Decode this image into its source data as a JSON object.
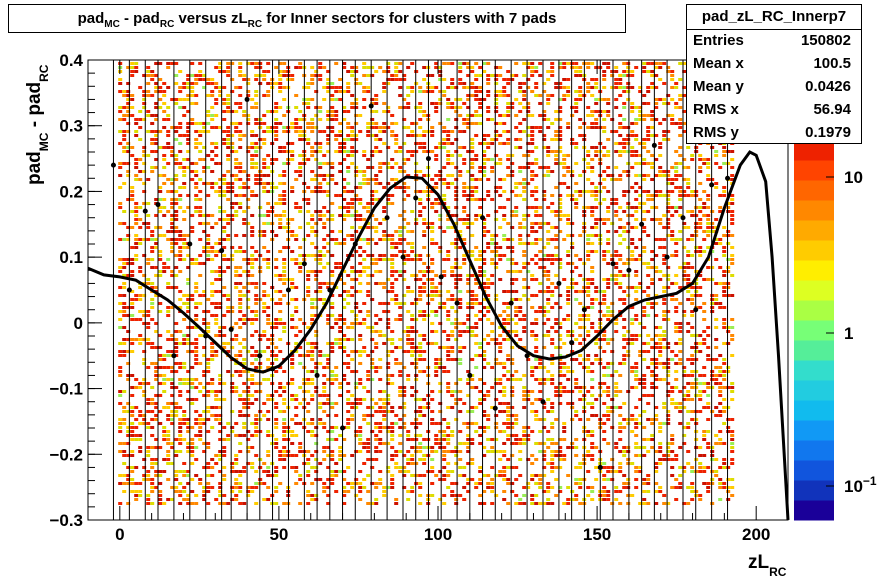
{
  "chart_data": {
    "type": "heatmap",
    "title": {
      "prefix": "pad",
      "sub1": "MC",
      "mid": " - pad",
      "sub2": "RC",
      "mid2": " versus zL",
      "sub3": "RC",
      "suffix": " for Inner sectors for clusters with 7 pads"
    },
    "xlabel": {
      "main": "zL",
      "sub": "RC"
    },
    "ylabel": {
      "main": "pad",
      "sub1": "MC",
      "mid": " - pad",
      "sub2": "RC"
    },
    "xlim": [
      -10,
      210
    ],
    "ylim": [
      -0.3,
      0.4
    ],
    "x_ticks": [
      0,
      50,
      100,
      150,
      200
    ],
    "x_tick_labels": [
      "0",
      "50",
      "100",
      "150",
      "200"
    ],
    "y_ticks": [
      -0.3,
      -0.2,
      -0.1,
      0,
      0.1,
      0.2,
      0.3,
      0.4
    ],
    "y_tick_labels": [
      "−0.3",
      "−0.2",
      "−0.1",
      "0",
      "0.1",
      "0.2",
      "0.3",
      "0.4"
    ],
    "z_scale": "log",
    "z_ticks": [
      {
        "label": "10",
        "exp": "",
        "value": 10
      },
      {
        "label": "1",
        "exp": "",
        "value": 1
      },
      {
        "label": "10",
        "exp": "−1",
        "value": 0.1
      }
    ],
    "fit_curve": {
      "x": [
        -10,
        -5,
        0,
        5,
        10,
        15,
        20,
        25,
        30,
        35,
        40,
        45,
        50,
        55,
        60,
        65,
        70,
        75,
        80,
        85,
        90,
        95,
        100,
        105,
        110,
        115,
        120,
        125,
        130,
        135,
        140,
        145,
        150,
        155,
        160,
        165,
        170,
        175,
        180,
        185,
        190,
        195,
        198,
        200,
        203,
        205,
        207,
        210
      ],
      "y": [
        0.083,
        0.073,
        0.07,
        0.065,
        0.05,
        0.035,
        0.015,
        -0.007,
        -0.03,
        -0.053,
        -0.07,
        -0.075,
        -0.066,
        -0.042,
        -0.01,
        0.03,
        0.08,
        0.13,
        0.175,
        0.205,
        0.222,
        0.22,
        0.195,
        0.15,
        0.095,
        0.04,
        -0.005,
        -0.035,
        -0.05,
        -0.055,
        -0.052,
        -0.042,
        -0.02,
        0.005,
        0.025,
        0.035,
        0.04,
        0.045,
        0.06,
        0.1,
        0.175,
        0.24,
        0.26,
        0.255,
        0.215,
        0.1,
        -0.05,
        -0.3
      ]
    },
    "profile_points": [
      {
        "x": -2,
        "y": 0.24,
        "e": 0.12
      },
      {
        "x": 3,
        "y": 0.05,
        "e": 0.08
      },
      {
        "x": 8,
        "y": 0.17,
        "e": 0.15
      },
      {
        "x": 12,
        "y": 0.18,
        "e": 0.1
      },
      {
        "x": 17,
        "y": -0.05,
        "e": 0.14
      },
      {
        "x": 22,
        "y": 0.12,
        "e": 0.09
      },
      {
        "x": 27,
        "y": -0.02,
        "e": 0.1
      },
      {
        "x": 32,
        "y": 0.11,
        "e": 0.12
      },
      {
        "x": 35,
        "y": -0.01,
        "e": 0.13
      },
      {
        "x": 40,
        "y": 0.34,
        "e": 0.06
      },
      {
        "x": 44,
        "y": -0.05,
        "e": 0.11
      },
      {
        "x": 48,
        "y": -0.07,
        "e": 0.1
      },
      {
        "x": 53,
        "y": 0.05,
        "e": 0.12
      },
      {
        "x": 58,
        "y": 0.09,
        "e": 0.1
      },
      {
        "x": 62,
        "y": -0.08,
        "e": 0.13
      },
      {
        "x": 66,
        "y": 0.05,
        "e": 0.11
      },
      {
        "x": 70,
        "y": -0.16,
        "e": 0.12
      },
      {
        "x": 74,
        "y": 0.12,
        "e": 0.1
      },
      {
        "x": 79,
        "y": 0.33,
        "e": 0.09
      },
      {
        "x": 84,
        "y": 0.16,
        "e": 0.14
      },
      {
        "x": 89,
        "y": 0.1,
        "e": 0.12
      },
      {
        "x": 93,
        "y": 0.19,
        "e": 0.1
      },
      {
        "x": 97,
        "y": 0.25,
        "e": 0.13
      },
      {
        "x": 101,
        "y": 0.07,
        "e": 0.12
      },
      {
        "x": 106,
        "y": 0.03,
        "e": 0.1
      },
      {
        "x": 110,
        "y": -0.08,
        "e": 0.13
      },
      {
        "x": 114,
        "y": 0.16,
        "e": 0.1
      },
      {
        "x": 118,
        "y": -0.13,
        "e": 0.12
      },
      {
        "x": 123,
        "y": 0.03,
        "e": 0.11
      },
      {
        "x": 128,
        "y": -0.05,
        "e": 0.12
      },
      {
        "x": 133,
        "y": -0.12,
        "e": 0.1
      },
      {
        "x": 138,
        "y": 0.06,
        "e": 0.13
      },
      {
        "x": 142,
        "y": -0.03,
        "e": 0.1
      },
      {
        "x": 146,
        "y": 0.02,
        "e": 0.12
      },
      {
        "x": 151,
        "y": -0.22,
        "e": 0.11
      },
      {
        "x": 155,
        "y": 0.09,
        "e": 0.12
      },
      {
        "x": 160,
        "y": 0.08,
        "e": 0.1
      },
      {
        "x": 164,
        "y": 0.15,
        "e": 0.13
      },
      {
        "x": 168,
        "y": 0.27,
        "e": 0.1
      },
      {
        "x": 172,
        "y": 0.1,
        "e": 0.12
      },
      {
        "x": 177,
        "y": 0.16,
        "e": 0.12
      },
      {
        "x": 181,
        "y": 0.02,
        "e": 0.1
      },
      {
        "x": 186,
        "y": 0.21,
        "e": 0.13
      },
      {
        "x": 191,
        "y": 0.22,
        "e": 0.11
      }
    ],
    "bin_colors": [
      "#ffffff",
      "#ffcc00",
      "#ff8800",
      "#ee2200",
      "#cc1100",
      "#dddd00",
      "#99ee55"
    ]
  },
  "stats": {
    "name": "pad_zL_RC_Innerp7",
    "rows": [
      {
        "label": "Entries",
        "value": "150802"
      },
      {
        "label": "Mean x",
        "value": "100.5"
      },
      {
        "label": "Mean y",
        "value": "0.0426"
      },
      {
        "label": "RMS x",
        "value": "56.94"
      },
      {
        "label": "RMS y",
        "value": "0.1979"
      }
    ]
  },
  "palette_colors": [
    "#1a0099",
    "#1133bb",
    "#1155dd",
    "#1177ee",
    "#1199f5",
    "#11bbee",
    "#22cce0",
    "#33ddcc",
    "#55ee99",
    "#77ff77",
    "#aaff44",
    "#ddff22",
    "#ffee00",
    "#ffcc00",
    "#ffaa00",
    "#ff8800",
    "#ff6600",
    "#ff4400",
    "#ee2200"
  ]
}
